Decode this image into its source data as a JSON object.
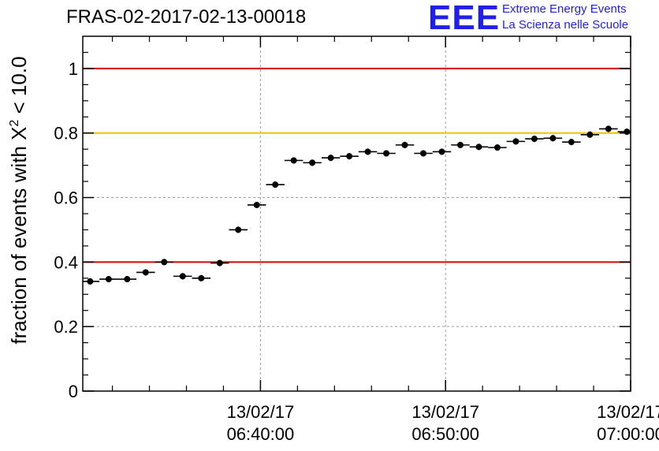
{
  "header": {
    "title": "FRAS-02-2017-02-13-00018",
    "logo_text": "EEE",
    "logo_line1": "Extreme Energy Events",
    "logo_line2": "La Scienza nelle Scuole"
  },
  "colors": {
    "red_line": "#e00000",
    "yellow_line": "#f5c000",
    "grid": "#9a9a9a",
    "logo": "#1f1fe8",
    "points": "#000000"
  },
  "chart_data": {
    "type": "scatter",
    "title": "FRAS-02-2017-02-13-00018",
    "ylabel_prefix": "fraction of events with ",
    "ylabel_symbol": "X",
    "ylabel_exponent": "2",
    "ylabel_suffix": " < 10.0",
    "xlabel": "",
    "xlim": [
      "06:30:24",
      "07:00:00"
    ],
    "ylim": [
      0,
      1.1
    ],
    "grid": true,
    "x_ticks": [
      {
        "value": "06:40:00",
        "line1": "13/02/17",
        "line2": "06:40:00"
      },
      {
        "value": "06:50:00",
        "line1": "13/02/17",
        "line2": "06:50:00"
      },
      {
        "value": "07:00:00",
        "line1": "13/02/17",
        "line2": "07:00:00"
      }
    ],
    "y_ticks": [
      {
        "value": 0,
        "label": "0"
      },
      {
        "value": 0.2,
        "label": "0.2"
      },
      {
        "value": 0.4,
        "label": "0.4"
      },
      {
        "value": 0.6,
        "label": "0.6"
      },
      {
        "value": 0.8,
        "label": "0.8"
      },
      {
        "value": 1.0,
        "label": "1"
      }
    ],
    "reference_lines": [
      {
        "y": 1.0,
        "color": "red"
      },
      {
        "y": 0.8,
        "color": "yellow"
      },
      {
        "y": 0.4,
        "color": "red"
      }
    ],
    "series": [
      {
        "x": [
          "06:30:48",
          "06:31:48",
          "06:32:48",
          "06:33:48",
          "06:34:48",
          "06:35:48",
          "06:36:48",
          "06:37:48",
          "06:38:48",
          "06:39:48",
          "06:40:48",
          "06:41:48",
          "06:42:48",
          "06:43:48",
          "06:44:48",
          "06:45:48",
          "06:46:48",
          "06:47:48",
          "06:48:48",
          "06:49:48",
          "06:50:48",
          "06:51:48",
          "06:52:48",
          "06:53:48",
          "06:54:48",
          "06:55:48",
          "06:56:48",
          "06:57:48",
          "06:58:48",
          "06:59:48"
        ],
        "y": [
          0.34,
          0.347,
          0.347,
          0.368,
          0.4,
          0.356,
          0.35,
          0.397,
          0.5,
          0.577,
          0.64,
          0.715,
          0.708,
          0.723,
          0.728,
          0.742,
          0.737,
          0.763,
          0.737,
          0.742,
          0.763,
          0.757,
          0.755,
          0.774,
          0.782,
          0.784,
          0.772,
          0.795,
          0.813,
          0.804
        ]
      }
    ]
  }
}
